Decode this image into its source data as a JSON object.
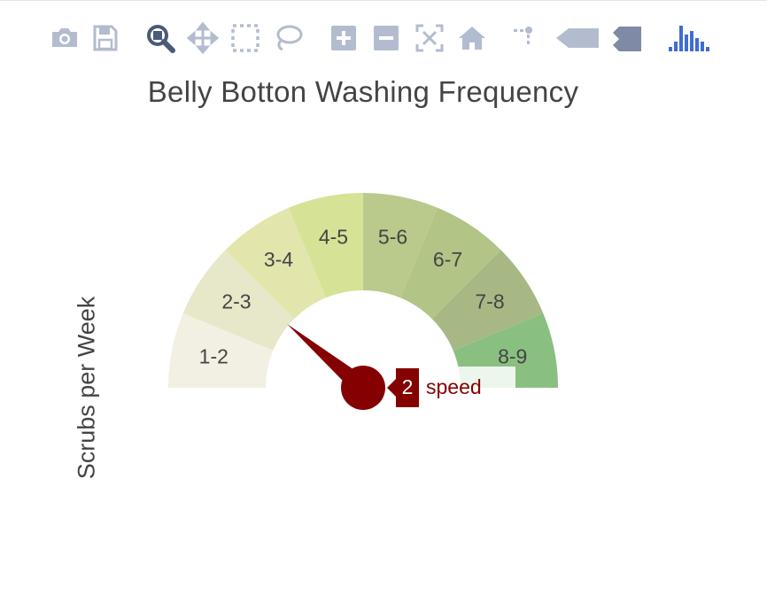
{
  "modebar": {
    "buttons": [
      {
        "name": "camera-icon",
        "title": "Download plot as a png"
      },
      {
        "name": "save-icon",
        "title": "Save"
      },
      {
        "name": "zoom-icon",
        "title": "Zoom",
        "active": true
      },
      {
        "name": "pan-icon",
        "title": "Pan"
      },
      {
        "name": "box-select-icon",
        "title": "Box Select"
      },
      {
        "name": "lasso-select-icon",
        "title": "Lasso Select"
      },
      {
        "name": "zoom-in-icon",
        "title": "Zoom in"
      },
      {
        "name": "zoom-out-icon",
        "title": "Zoom out"
      },
      {
        "name": "autoscale-icon",
        "title": "Autoscale"
      },
      {
        "name": "reset-axes-icon",
        "title": "Reset axes"
      },
      {
        "name": "spike-lines-icon",
        "title": "Toggle Spike Lines"
      },
      {
        "name": "hover-closest-icon",
        "title": "Show closest data on hover"
      },
      {
        "name": "hover-compare-icon",
        "title": "Compare data on hover"
      },
      {
        "name": "plotly-logo-icon",
        "title": "Produced with Plotly"
      }
    ],
    "icon_color": "#b3bccf",
    "active_color": "#4a5a7a",
    "logo_color": "#3f6dd1"
  },
  "chart_data": {
    "type": "gauge",
    "title": "Belly Botton Washing Frequency",
    "ylabel": "Scrubs per Week",
    "range": [
      0,
      9
    ],
    "segments": [
      {
        "label": "1-2",
        "color": "#f2f0e3"
      },
      {
        "label": "2-3",
        "color": "#e7e7c9"
      },
      {
        "label": "3-4",
        "color": "#e3e6ac"
      },
      {
        "label": "4-5",
        "color": "#d6e396"
      },
      {
        "label": "5-6",
        "color": "#b9ca8c"
      },
      {
        "label": "6-7",
        "color": "#b2c486"
      },
      {
        "label": "7-8",
        "color": "#a8b885"
      },
      {
        "label": "8-9",
        "color": "#89c080"
      }
    ],
    "value": 2,
    "needle_color": "#850000",
    "hover": {
      "value_text": "2",
      "name": "speed"
    }
  }
}
